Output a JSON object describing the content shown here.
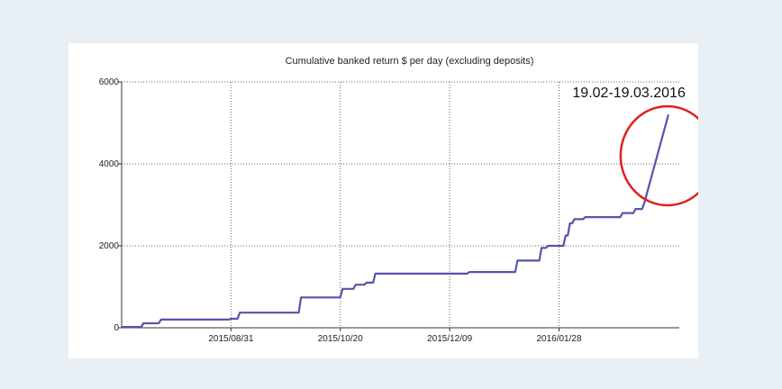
{
  "colors": {
    "background": "#e9f0f5",
    "panel": "#ffffff",
    "line": "#5555aa",
    "grid": "#666666",
    "annotation": "#e02020"
  },
  "chart_data": {
    "type": "line",
    "title": "Cumulative banked return $ per day (excluding deposits)",
    "xlabel": "",
    "ylabel": "",
    "x_ticks": [
      "2015/08/31",
      "2015/10/20",
      "2015/12/09",
      "2016/01/28"
    ],
    "y_ticks": [
      "0",
      "2000",
      "4000",
      "6000"
    ],
    "xlim": [
      "2015-07-12",
      "2016-03-23"
    ],
    "ylim": [
      0,
      6000
    ],
    "grid": true,
    "series": [
      {
        "x": [
          "2015-07-12",
          "2015-07-21",
          "2015-07-22",
          "2015-07-29",
          "2015-07-30",
          "2015-08-30",
          "2015-08-31",
          "2015-09-03",
          "2015-09-04",
          "2015-10-01",
          "2015-10-02",
          "2015-10-20",
          "2015-10-21",
          "2015-10-26",
          "2015-10-27",
          "2015-10-31",
          "2015-11-01",
          "2015-11-04",
          "2015-11-05",
          "2015-12-17",
          "2015-12-18",
          "2016-01-08",
          "2016-01-09",
          "2016-01-19",
          "2016-01-20",
          "2016-01-22",
          "2016-01-23",
          "2016-01-30",
          "2016-01-31",
          "2016-02-01",
          "2016-02-02",
          "2016-02-03",
          "2016-02-04",
          "2016-02-08",
          "2016-02-09",
          "2016-02-25",
          "2016-02-26",
          "2016-03-02",
          "2016-03-03",
          "2016-03-06",
          "2016-03-07",
          "2016-03-18"
        ],
        "y": [
          20,
          20,
          110,
          110,
          200,
          200,
          220,
          220,
          370,
          370,
          740,
          740,
          950,
          950,
          1050,
          1050,
          1100,
          1100,
          1320,
          1320,
          1360,
          1360,
          1640,
          1640,
          1950,
          1950,
          2000,
          2000,
          2250,
          2250,
          2550,
          2550,
          2650,
          2650,
          2700,
          2700,
          2800,
          2800,
          2900,
          2900,
          3050,
          5200
        ]
      }
    ],
    "annotations": [
      {
        "text": "19.02-19.03.2016",
        "shape": "circle"
      }
    ]
  }
}
